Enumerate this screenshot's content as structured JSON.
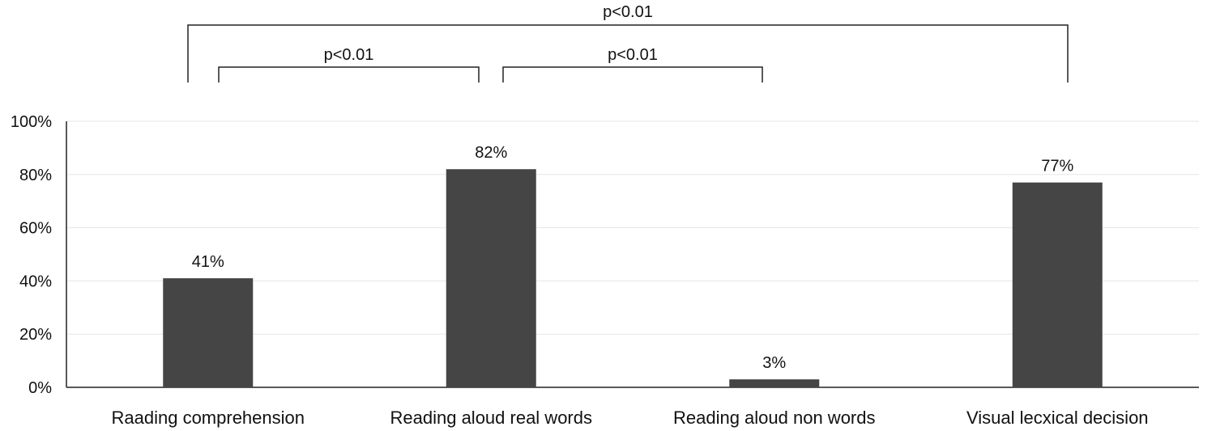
{
  "chart_data": {
    "type": "bar",
    "title": "",
    "xlabel": "",
    "ylabel": "",
    "categories": [
      "Raading comprehension",
      "Reading aloud real words",
      "Reading aloud non words",
      "Visual lecxical decision"
    ],
    "values": [
      41,
      82,
      3,
      77
    ],
    "data_labels": [
      "41%",
      "82%",
      "3%",
      "77%"
    ],
    "ylim": [
      0,
      100
    ],
    "yticks": [
      0,
      20,
      40,
      60,
      80,
      100
    ],
    "ytick_labels": [
      "0%",
      "20%",
      "40%",
      "60%",
      "80%",
      "100%"
    ],
    "grid": true,
    "legend": "none",
    "bar_color": "#454545",
    "significance": [
      {
        "from": 0,
        "to": 3,
        "label": "p<0.01"
      },
      {
        "from": 0,
        "to": 1,
        "label": "p<0.01"
      },
      {
        "from": 1,
        "to": 2,
        "label": "p<0.01"
      }
    ]
  }
}
